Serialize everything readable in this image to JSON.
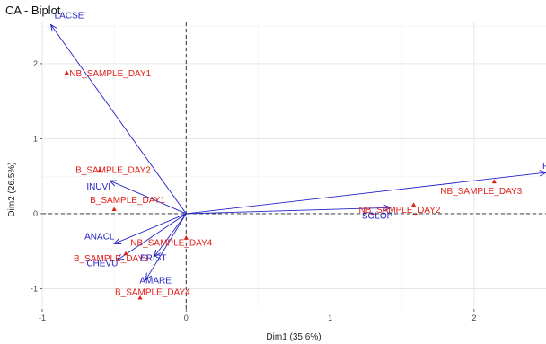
{
  "chart_data": {
    "type": "scatter",
    "title": "CA - Biplot",
    "xlabel": "Dim1 (35.6%)",
    "ylabel": "Dim2 (26.5%)",
    "xlim": [
      -1.0,
      2.5
    ],
    "ylim": [
      -1.27,
      2.55
    ],
    "x_ticks": [
      -1,
      0,
      1,
      2
    ],
    "y_ticks": [
      -1,
      0,
      1,
      2
    ],
    "x_tick_labels": [
      "-1",
      "0",
      "1",
      "2"
    ],
    "y_tick_labels": [
      "-1",
      "0",
      "1",
      "2"
    ],
    "grid": true,
    "reference_lines": {
      "x": 0,
      "y": 0,
      "style": "dashed"
    },
    "colors": {
      "rows": "#e0201b",
      "columns": "#2323c8"
    },
    "series": [
      {
        "name": "rows",
        "marker": "triangle",
        "points": [
          {
            "label": "NB_SAMPLE_DAY1",
            "x": -0.83,
            "y": 1.88
          },
          {
            "label": "B_SAMPLE_DAY2",
            "x": -0.6,
            "y": 0.58
          },
          {
            "label": "B_SAMPLE_DAY1",
            "x": -0.5,
            "y": 0.06
          },
          {
            "label": "NB_SAMPLE_DAY3",
            "x": 2.14,
            "y": 0.43
          },
          {
            "label": "NB_SAMPLE_DAY2",
            "x": 1.58,
            "y": 0.12
          },
          {
            "label": "NB_SAMPLE_DAY4",
            "x": 0.0,
            "y": -0.32
          },
          {
            "label": "B_SAMPLE_DAY3",
            "x": -0.42,
            "y": -0.53
          },
          {
            "label": "B_SAMPLE_DAY4",
            "x": -0.32,
            "y": -1.12
          }
        ]
      },
      {
        "name": "columns",
        "marker": "arrow",
        "points": [
          {
            "label": "LACSE",
            "x": -0.94,
            "y": 2.52
          },
          {
            "label": "POROL",
            "x": 2.5,
            "y": 0.55
          },
          {
            "label": "INUVI",
            "x": -0.53,
            "y": 0.44
          },
          {
            "label": "SOLOP",
            "x": 1.42,
            "y": 0.08
          },
          {
            "label": "ANACL",
            "x": -0.5,
            "y": -0.4
          },
          {
            "label": "ERIST",
            "x": -0.22,
            "y": -0.57
          },
          {
            "label": "CHEVU",
            "x": -0.48,
            "y": -0.62
          },
          {
            "label": "AMARE",
            "x": -0.28,
            "y": -0.88
          }
        ]
      }
    ]
  }
}
